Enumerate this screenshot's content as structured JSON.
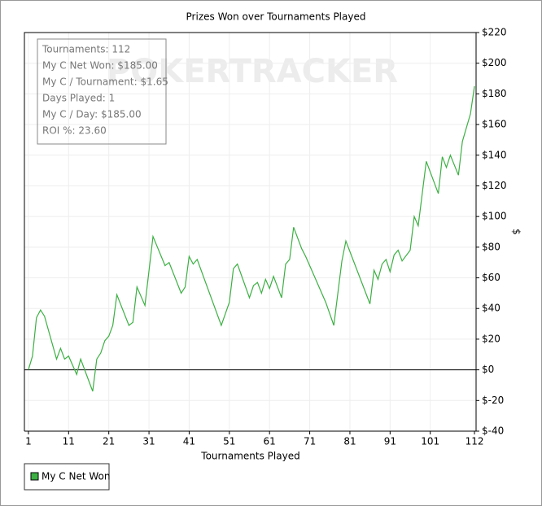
{
  "chart_data": {
    "type": "line",
    "title": "Prizes Won over Tournaments Played",
    "x_label": "Tournaments Played",
    "y_label": "$",
    "watermark": "POKERTRACKER",
    "annotations": [
      "Tournaments: 112",
      "My C Net Won: $185.00",
      "My C / Tournament: $1.65",
      "Days Played: 1",
      "My C / Day: $185.00",
      "ROI %: 23.60"
    ],
    "series": [
      {
        "name": "My C Net Won",
        "color": "#3cb043",
        "x": [
          1,
          2,
          3,
          4,
          5,
          8,
          9,
          10,
          11,
          13,
          14,
          17,
          18,
          19,
          20,
          21,
          22,
          23,
          26,
          27,
          28,
          30,
          32,
          35,
          36,
          39,
          40,
          41,
          42,
          43,
          49,
          51,
          52,
          53,
          56,
          57,
          58,
          59,
          60,
          61,
          62,
          64,
          65,
          66,
          67,
          69,
          70,
          75,
          77,
          79,
          80,
          86,
          87,
          88,
          89,
          90,
          91,
          92,
          93,
          94,
          96,
          97,
          98,
          100,
          103,
          104,
          105,
          106,
          108,
          109,
          111,
          112
        ],
        "values": [
          0,
          9,
          34,
          39,
          35,
          7,
          14,
          7,
          9,
          -3,
          7,
          -14,
          7,
          11,
          19,
          22,
          29,
          49,
          29,
          31,
          54,
          42,
          87,
          68,
          70,
          50,
          54,
          74,
          69,
          72,
          29,
          44,
          66,
          69,
          47,
          55,
          57,
          50,
          59,
          53,
          61,
          47,
          69,
          72,
          93,
          79,
          74,
          44,
          29,
          71,
          84,
          43,
          65,
          59,
          69,
          72,
          64,
          75,
          78,
          71,
          78,
          100,
          94,
          136,
          115,
          139,
          132,
          140,
          127,
          149,
          167,
          185
        ]
      }
    ],
    "xlim": [
      0,
      112.4
    ],
    "xticks": [
      1,
      11,
      21,
      31,
      41,
      51,
      61,
      71,
      81,
      91,
      101,
      112
    ],
    "ylim": [
      -40,
      220
    ],
    "yticks": [
      {
        "value": -40,
        "label": "$-40"
      },
      {
        "value": -20,
        "label": "$-20"
      },
      {
        "value": 0,
        "label": "$0"
      },
      {
        "value": 20,
        "label": "$20"
      },
      {
        "value": 40,
        "label": "$40"
      },
      {
        "value": 60,
        "label": "$60"
      },
      {
        "value": 80,
        "label": "$80"
      },
      {
        "value": 100,
        "label": "$100"
      },
      {
        "value": 120,
        "label": "$120"
      },
      {
        "value": 140,
        "label": "$140"
      },
      {
        "value": 160,
        "label": "$160"
      },
      {
        "value": 180,
        "label": "$180"
      },
      {
        "value": 200,
        "label": "$200"
      },
      {
        "value": 220,
        "label": "$220"
      }
    ],
    "grid": true
  }
}
